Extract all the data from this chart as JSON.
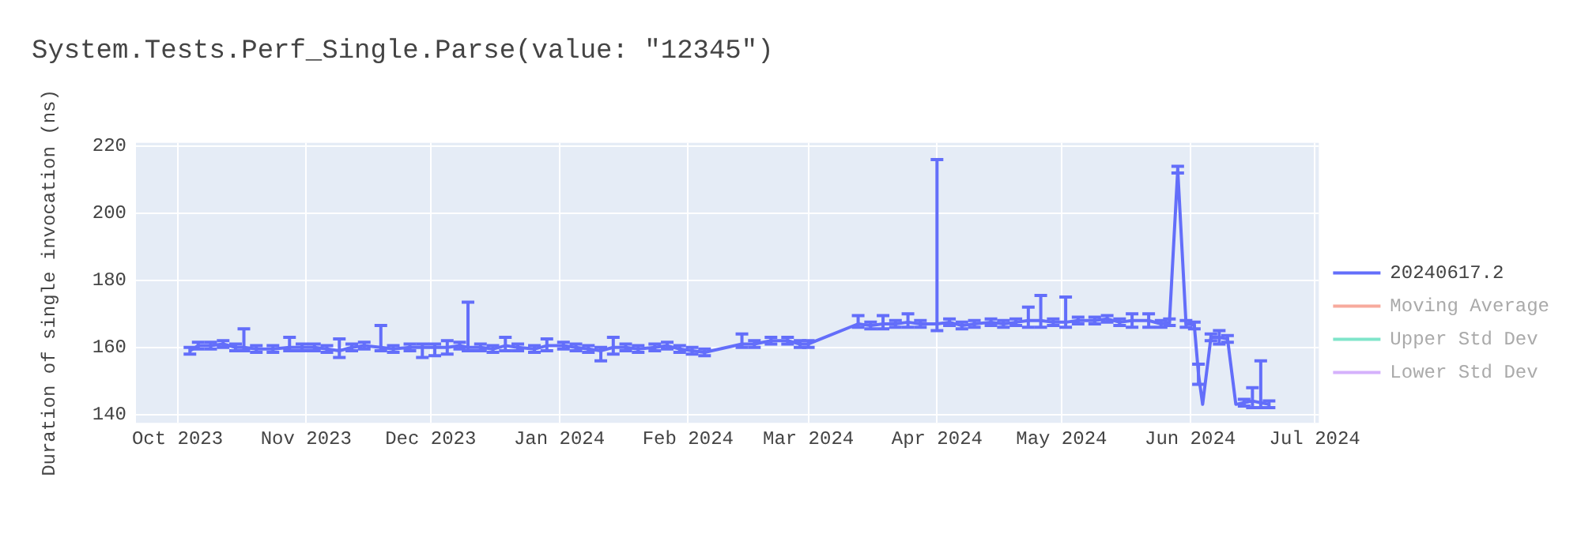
{
  "chart_data": {
    "type": "line",
    "title": "System.Tests.Perf_Single.Parse(value: \"12345\")",
    "ylabel": "Duration of single invocation (ns)",
    "xlim": [
      "2023-09-21",
      "2024-07-02"
    ],
    "ylim": [
      137.5,
      221
    ],
    "yticks": [
      140,
      160,
      180,
      200,
      220
    ],
    "xticks": [
      {
        "value": "2023-10-01",
        "label": "Oct 2023"
      },
      {
        "value": "2023-11-01",
        "label": "Nov 2023"
      },
      {
        "value": "2023-12-01",
        "label": "Dec 2023"
      },
      {
        "value": "2024-01-01",
        "label": "Jan 2024"
      },
      {
        "value": "2024-02-01",
        "label": "Feb 2024"
      },
      {
        "value": "2024-03-01",
        "label": "Mar 2024"
      },
      {
        "value": "2024-04-01",
        "label": "Apr 2024"
      },
      {
        "value": "2024-05-01",
        "label": "May 2024"
      },
      {
        "value": "2024-06-01",
        "label": "Jun 2024"
      },
      {
        "value": "2024-07-01",
        "label": "Jul 2024"
      }
    ],
    "grid": true,
    "legend": "right",
    "marker": "none",
    "line_style": "solid",
    "x": [
      "2023-10-04",
      "2023-10-06",
      "2023-10-09",
      "2023-10-12",
      "2023-10-15",
      "2023-10-17",
      "2023-10-20",
      "2023-10-24",
      "2023-10-28",
      "2023-10-31",
      "2023-11-03",
      "2023-11-06",
      "2023-11-09",
      "2023-11-12",
      "2023-11-15",
      "2023-11-19",
      "2023-11-22",
      "2023-11-26",
      "2023-11-29",
      "2023-12-02",
      "2023-12-05",
      "2023-12-08",
      "2023-12-10",
      "2023-12-13",
      "2023-12-16",
      "2023-12-19",
      "2023-12-22",
      "2023-12-26",
      "2023-12-29",
      "2024-01-02",
      "2024-01-05",
      "2024-01-08",
      "2024-01-11",
      "2024-01-14",
      "2024-01-17",
      "2024-01-20",
      "2024-01-24",
      "2024-01-27",
      "2024-01-30",
      "2024-02-02",
      "2024-02-05",
      "2024-02-14",
      "2024-02-17",
      "2024-02-21",
      "2024-02-25",
      "2024-02-28",
      "2024-03-01",
      "2024-03-13",
      "2024-03-16",
      "2024-03-19",
      "2024-03-22",
      "2024-03-25",
      "2024-03-28",
      "2024-04-01",
      "2024-04-04",
      "2024-04-07",
      "2024-04-10",
      "2024-04-14",
      "2024-04-17",
      "2024-04-20",
      "2024-04-23",
      "2024-04-26",
      "2024-04-29",
      "2024-05-02",
      "2024-05-05",
      "2024-05-09",
      "2024-05-12",
      "2024-05-15",
      "2024-05-18",
      "2024-05-22",
      "2024-05-25",
      "2024-05-27",
      "2024-05-29",
      "2024-05-31",
      "2024-06-01",
      "2024-06-02",
      "2024-06-03",
      "2024-06-04",
      "2024-06-06",
      "2024-06-08",
      "2024-06-10",
      "2024-06-12",
      "2024-06-14",
      "2024-06-16",
      "2024-06-18",
      "2024-06-20"
    ],
    "series": [
      {
        "name": "20240617.2",
        "color": "#636efa",
        "values": [
          159,
          160.5,
          160.5,
          161,
          160,
          160,
          159.5,
          159.5,
          160,
          160,
          160,
          159.5,
          159,
          160,
          160.5,
          160,
          159.5,
          160,
          160,
          160,
          160,
          160.5,
          160,
          160,
          159.5,
          160.5,
          160,
          159.5,
          160.5,
          160.5,
          160,
          159.5,
          159,
          160,
          160,
          159.5,
          160,
          160.5,
          159.5,
          159,
          158.5,
          161,
          161,
          162,
          162,
          161,
          161,
          167,
          166.5,
          167,
          167,
          167.5,
          167,
          167,
          167.5,
          166.5,
          167,
          167.5,
          167,
          167.5,
          168,
          168,
          167.5,
          167.5,
          168,
          168,
          168.5,
          167.5,
          168,
          168,
          167,
          167.5,
          213,
          167,
          167,
          166.5,
          152,
          143,
          163,
          163,
          162.5,
          143,
          143.5,
          144,
          143.5,
          143
        ],
        "errors": [
          1,
          1,
          1,
          1,
          1,
          [
            159,
            165.5
          ],
          1,
          1,
          [
            159,
            163
          ],
          1,
          1,
          1,
          [
            157,
            162.5
          ],
          1,
          1,
          [
            159,
            166.5
          ],
          1,
          1,
          [
            157,
            161
          ],
          [
            157.5,
            161
          ],
          [
            158,
            162
          ],
          1,
          [
            159,
            173.5
          ],
          1,
          1,
          [
            159,
            163
          ],
          1,
          1,
          [
            159,
            162.5
          ],
          1,
          1,
          1,
          [
            156,
            160
          ],
          [
            158,
            163
          ],
          1,
          1,
          1,
          1,
          1,
          1,
          1,
          [
            160,
            164
          ],
          1,
          1,
          1,
          1,
          1,
          [
            166,
            169.5
          ],
          1,
          [
            165.5,
            169.5
          ],
          1,
          [
            166,
            170
          ],
          1,
          [
            165,
            216
          ],
          1,
          1,
          1,
          1,
          1,
          1,
          [
            166,
            172
          ],
          [
            166,
            175.5
          ],
          1,
          [
            166,
            175
          ],
          1,
          1,
          1,
          1,
          [
            166,
            170
          ],
          [
            166,
            170
          ],
          1,
          1,
          1,
          1,
          null,
          1,
          [
            149,
            155
          ],
          null,
          1,
          [
            161,
            165
          ],
          1,
          null,
          1,
          [
            142,
            148
          ],
          [
            142,
            156
          ],
          1
        ]
      },
      {
        "name": "Moving Average",
        "color": "#ef553b",
        "values": [
          null,
          null,
          null,
          null,
          null,
          null,
          null,
          null,
          null,
          null,
          null,
          null,
          null,
          null,
          null,
          null,
          null,
          null,
          null,
          null,
          null,
          null,
          null,
          null,
          null,
          null,
          null,
          null,
          null,
          null,
          null,
          null,
          null,
          null,
          null,
          null,
          null,
          null,
          null,
          null,
          null,
          null,
          null,
          null,
          null,
          null,
          null,
          null,
          null,
          null,
          null,
          null,
          null,
          null,
          null,
          null,
          null,
          null,
          null,
          null,
          null,
          null,
          null,
          null,
          null,
          null,
          null,
          null,
          null,
          null,
          null,
          null,
          null,
          null,
          null,
          null,
          null,
          null,
          null,
          null,
          null,
          null,
          null,
          null,
          null,
          null
        ]
      },
      {
        "name": "Upper Std Dev",
        "color": "#00cc96",
        "values": [
          null,
          null,
          null,
          null,
          null,
          null,
          null,
          null,
          null,
          null,
          null,
          null,
          null,
          null,
          null,
          null,
          null,
          null,
          null,
          null,
          null,
          null,
          null,
          null,
          null,
          null,
          null,
          null,
          null,
          null,
          null,
          null,
          null,
          null,
          null,
          null,
          null,
          null,
          null,
          null,
          null,
          null,
          null,
          null,
          null,
          null,
          null,
          null,
          null,
          null,
          null,
          null,
          null,
          null,
          null,
          null,
          null,
          null,
          null,
          null,
          null,
          null,
          null,
          null,
          null,
          null,
          null,
          null,
          null,
          null,
          null,
          null,
          null,
          null,
          null,
          null,
          null,
          null,
          null,
          null,
          null,
          null,
          null,
          null,
          null,
          null
        ]
      },
      {
        "name": "Lower Std Dev",
        "color": "#ab63fa",
        "values": [
          null,
          null,
          null,
          null,
          null,
          null,
          null,
          null,
          null,
          null,
          null,
          null,
          null,
          null,
          null,
          null,
          null,
          null,
          null,
          null,
          null,
          null,
          null,
          null,
          null,
          null,
          null,
          null,
          null,
          null,
          null,
          null,
          null,
          null,
          null,
          null,
          null,
          null,
          null,
          null,
          null,
          null,
          null,
          null,
          null,
          null,
          null,
          null,
          null,
          null,
          null,
          null,
          null,
          null,
          null,
          null,
          null,
          null,
          null,
          null,
          null,
          null,
          null,
          null,
          null,
          null,
          null,
          null,
          null,
          null,
          null,
          null,
          null,
          null,
          null,
          null,
          null,
          null,
          null,
          null,
          null,
          null,
          null,
          null,
          null,
          null
        ]
      }
    ]
  }
}
